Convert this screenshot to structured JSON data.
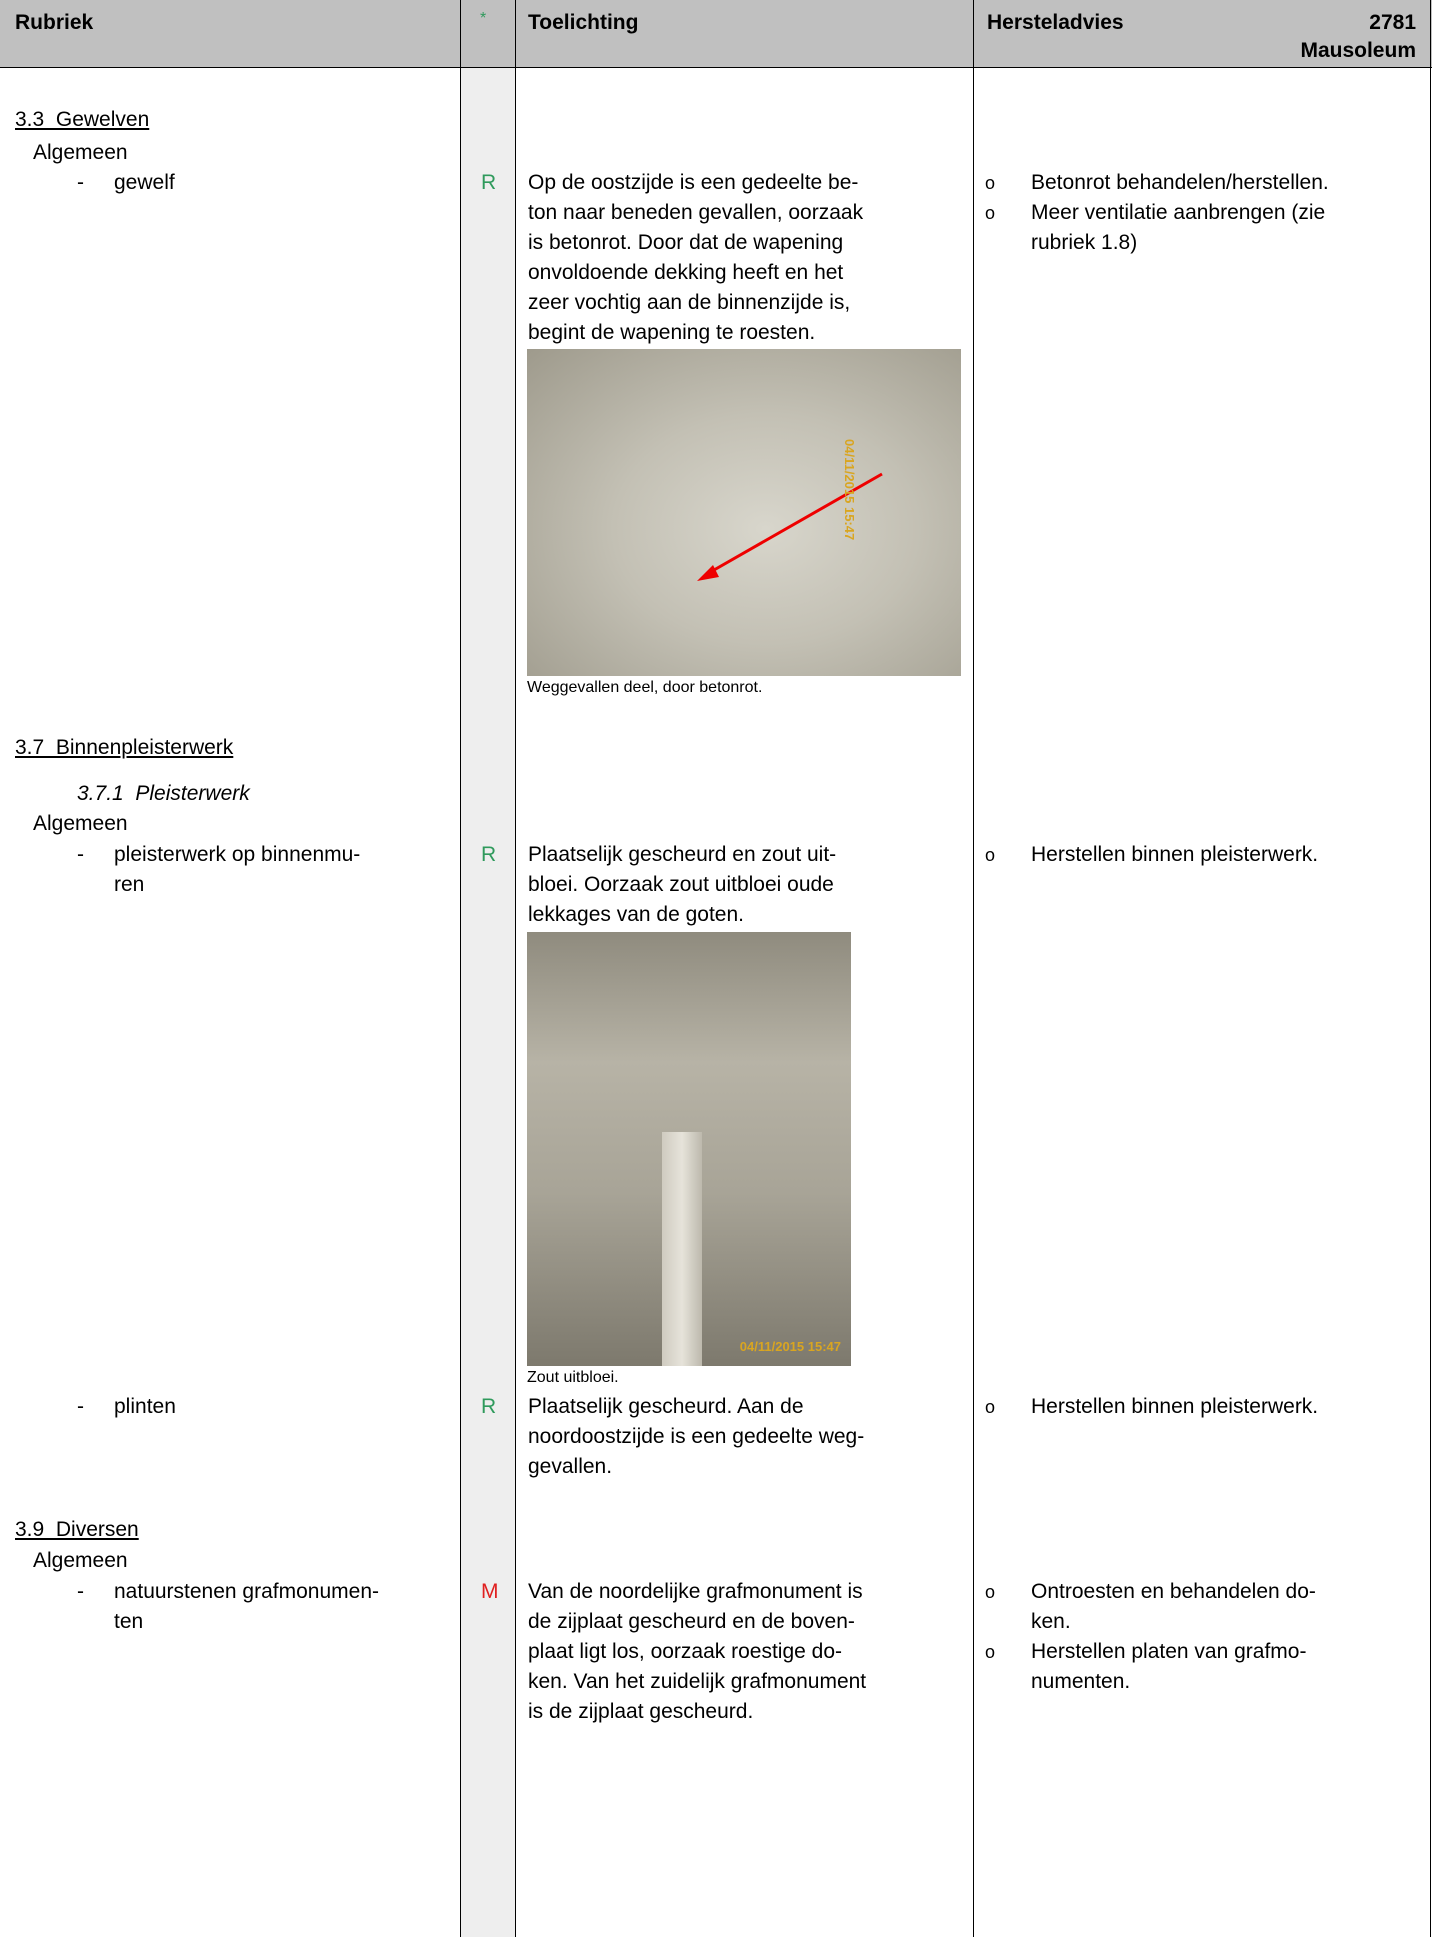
{
  "header": {
    "rubriek": "Rubriek",
    "star": "*",
    "toelichting": "Toelichting",
    "hersteladvies": "Hersteladvies",
    "code": "2781",
    "building": "Mausoleum"
  },
  "rating_colors": {
    "R": "#2f9a5c",
    "M": "#e02020"
  },
  "sections": [
    {
      "heading": "3.3  Gewelven",
      "group": "Algemeen",
      "items": [
        {
          "element": [
            "gewelf"
          ],
          "rating": "R",
          "remarks": [
            "Op de oostzijde is een gedeelte be-",
            "ton naar beneden gevallen, oorzaak",
            "is betonrot. Door dat de wapening",
            "onvoldoende dekking heeft en het",
            "zeer vochtig aan de binnenzijde is,",
            "begint de wapening te roesten."
          ],
          "photo_stamp": "04/11/2015 15:47",
          "photo_caption": "Weggevallen deel, door betonrot.",
          "advice": [
            [
              "Betonrot behandelen/herstellen."
            ],
            [
              "Meer ventilatie aanbrengen (zie",
              "rubriek 1.8)"
            ]
          ]
        }
      ]
    },
    {
      "heading": "3.7  Binnenpleisterwerk",
      "subheading": "3.7.1  Pleisterwerk",
      "group": "Algemeen",
      "items": [
        {
          "element": [
            "pleisterwerk op binnenmu-",
            "ren"
          ],
          "rating": "R",
          "remarks": [
            "Plaatselijk gescheurd en zout uit-",
            "bloei. Oorzaak zout uitbloei oude",
            "lekkages van de goten."
          ],
          "photo_stamp": "04/11/2015 15:47",
          "photo_caption": "Zout uitbloei.",
          "advice": [
            [
              "Herstellen binnen pleisterwerk."
            ]
          ]
        },
        {
          "element": [
            "plinten"
          ],
          "rating": "R",
          "remarks": [
            "Plaatselijk gescheurd. Aan de",
            "noordoostzijde is een gedeelte weg-",
            "gevallen."
          ],
          "advice": [
            [
              "Herstellen binnen pleisterwerk."
            ]
          ]
        }
      ]
    },
    {
      "heading": "3.9  Diversen",
      "group": "Algemeen",
      "items": [
        {
          "element": [
            "natuurstenen grafmonumen-",
            "ten"
          ],
          "rating": "M",
          "remarks": [
            "Van de noordelijke grafmonument is",
            "de zijplaat gescheurd en de boven-",
            "plaat ligt los, oorzaak roestige do-",
            "ken. Van het zuidelijk grafmonument",
            "is de zijplaat gescheurd."
          ],
          "advice": [
            [
              "Ontroesten en behandelen do-",
              "ken."
            ],
            [
              "Herstellen platen van grafmo-",
              "numenten."
            ]
          ]
        }
      ]
    }
  ]
}
